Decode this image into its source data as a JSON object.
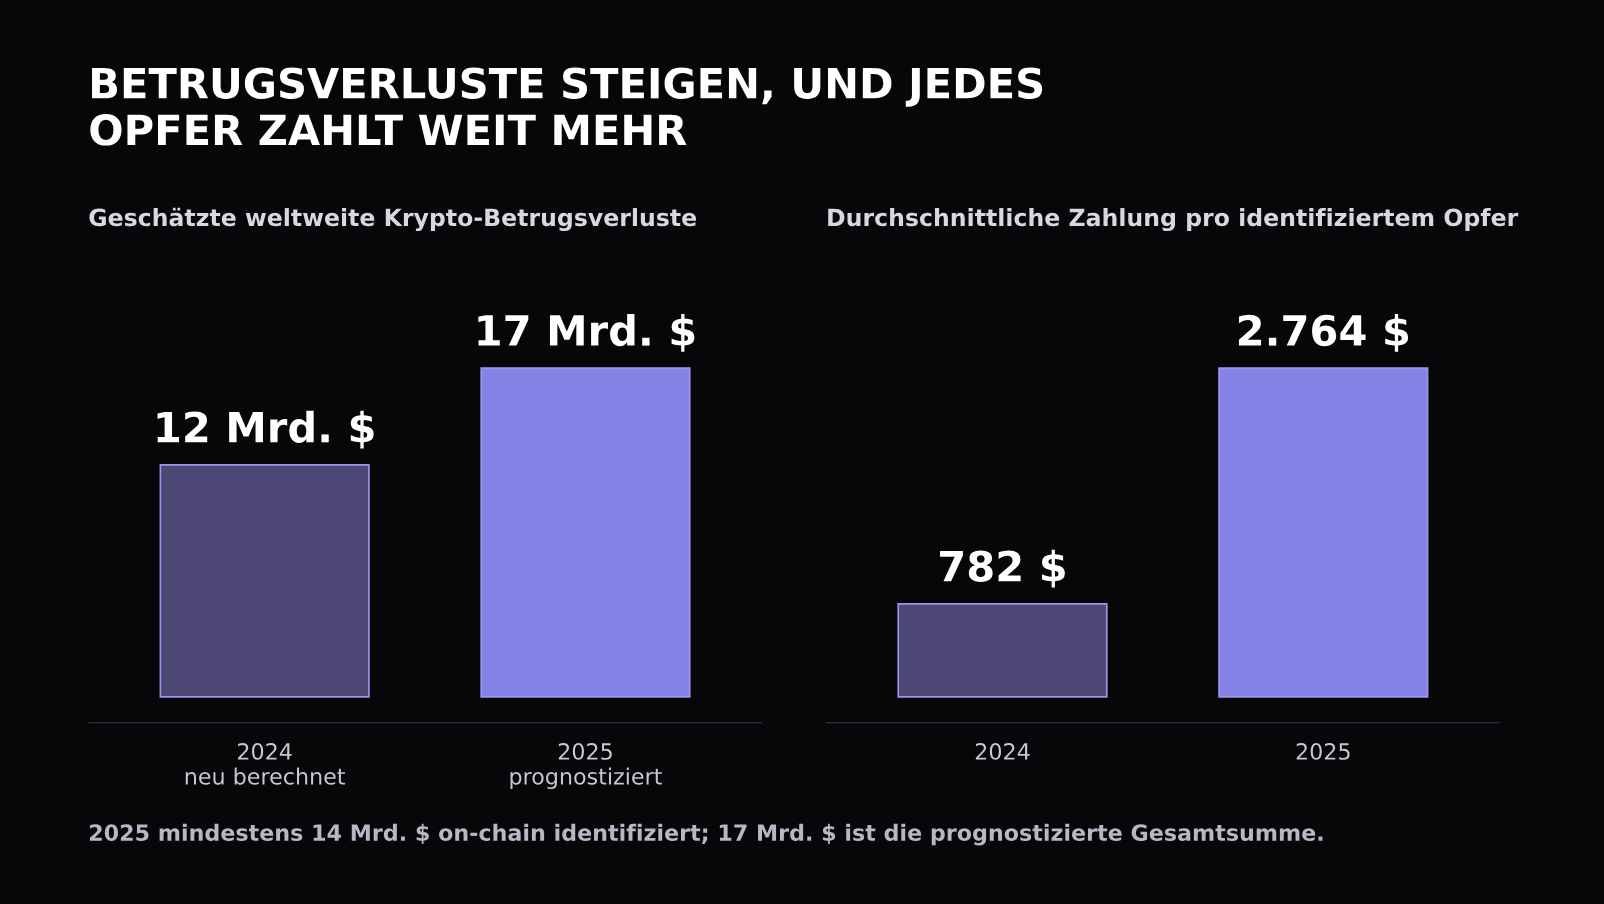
{
  "chart_data": [
    {
      "type": "bar",
      "title": "BETRUGSVERLUSTE STEIGEN, UND JEDES\nOPFER ZAHLT WEIT MEHR",
      "subtitle": "Geschätzte weltweite Krypto-Betrugsverluste",
      "categories": [
        "2024\nneu berechnet",
        "2025\nprognostiziert"
      ],
      "values": [
        12,
        17
      ],
      "value_labels": [
        "12 Mrd. $",
        "17 Mrd. $"
      ],
      "colors": [
        "#4d4775",
        "#8583e6"
      ],
      "tick_labels": "x",
      "grid": false,
      "legend": false,
      "annotations": [
        "2025 mindestens 14 Mrd. $ on-chain identifiziert; 17 Mrd. $ ist die prognostizierte Gesamtsumme."
      ]
    },
    {
      "type": "bar",
      "subtitle": "Durchschnittliche Zahlung pro identifiziertem Opfer",
      "categories": [
        "2024",
        "2025"
      ],
      "values": [
        782,
        2764
      ],
      "value_labels": [
        "782 $",
        "2.764 $"
      ],
      "colors": [
        "#4d4775",
        "#8583e6"
      ],
      "tick_labels": "x",
      "grid": false,
      "legend": false
    }
  ]
}
